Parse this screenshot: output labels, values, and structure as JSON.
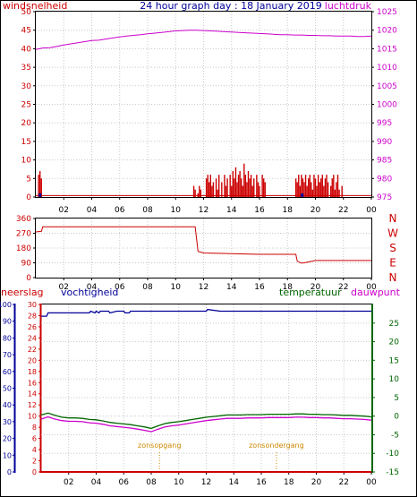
{
  "header": {
    "title": "24 hour graph day : 18 January 2019",
    "left_label": "windsnelheid",
    "right_label": "luchtdruk"
  },
  "colors": {
    "wind": "#cc0000",
    "pressure": "#cc00cc",
    "direction": "#cc0000",
    "rain": "#cc0000",
    "humidity": "#000099",
    "temperature": "#006600",
    "dewpoint": "#cc00cc",
    "sun": "#cc8800",
    "grid": "#c8c8c8",
    "axis": "#000000",
    "title": "#000099"
  },
  "chart_data": [
    {
      "type": "bar+line",
      "title": "24 hour graph day : 18 January 2019",
      "ylabel": "windsnelheid",
      "y2label": "luchtdruk",
      "x_ticks": [
        "02",
        "04",
        "06",
        "08",
        "10",
        "12",
        "14",
        "16",
        "18",
        "20",
        "22",
        "00"
      ],
      "xlim": [
        0,
        24
      ],
      "ylim": [
        0,
        50
      ],
      "y_ticks": [
        "0",
        "5",
        "10",
        "15",
        "20",
        "25",
        "30",
        "35",
        "40",
        "45",
        "50"
      ],
      "y2lim": [
        975,
        1025
      ],
      "y2_ticks": [
        "975",
        "980",
        "985",
        "990",
        "995",
        "1000",
        "1005",
        "1010",
        "1015",
        "1020",
        "1025"
      ],
      "wind_gust": {
        "x": [
          0.2,
          0.3,
          0.4,
          11.3,
          11.4,
          11.6,
          11.7,
          11.8,
          12.2,
          12.3,
          12.4,
          12.5,
          12.6,
          12.7,
          12.9,
          13.0,
          13.1,
          13.3,
          13.5,
          13.6,
          13.7,
          13.9,
          14.0,
          14.1,
          14.2,
          14.3,
          14.4,
          14.5,
          14.6,
          14.7,
          14.8,
          14.9,
          15.0,
          15.1,
          15.2,
          15.3,
          15.4,
          15.5,
          15.6,
          15.8,
          15.9,
          16.0,
          16.2,
          16.3,
          16.4,
          18.6,
          18.7,
          18.8,
          18.9,
          19.0,
          19.1,
          19.2,
          19.3,
          19.4,
          19.5,
          19.6,
          19.7,
          19.8,
          19.9,
          20.0,
          20.1,
          20.2,
          20.3,
          20.4,
          20.5,
          20.6,
          20.7,
          20.8,
          20.9,
          21.1,
          21.2,
          21.3,
          21.4,
          21.5,
          21.6,
          21.7,
          21.9
        ],
        "values": [
          6,
          7,
          5,
          3,
          2,
          1,
          3,
          2,
          5,
          6,
          4,
          6,
          3,
          4,
          5,
          2,
          6,
          4,
          6,
          3,
          5,
          6,
          3,
          7,
          5,
          8,
          4,
          6,
          7,
          5,
          3,
          9,
          6,
          4,
          7,
          5,
          6,
          3,
          5,
          6,
          4,
          3,
          6,
          5,
          4,
          5,
          4,
          6,
          3,
          6,
          5,
          4,
          6,
          3,
          5,
          6,
          4,
          2,
          6,
          5,
          3,
          6,
          4,
          5,
          6,
          3,
          5,
          6,
          4,
          3,
          5,
          6,
          2,
          4,
          6,
          2,
          3
        ],
        "flat_value": 0.4
      },
      "wind_avg": {
        "x": [
          0.25,
          0.35,
          19.0,
          19.1
        ],
        "values": [
          1,
          1,
          1,
          1
        ]
      },
      "pressure": {
        "x": [
          0,
          0.5,
          1,
          1.5,
          2,
          2.5,
          3,
          3.5,
          4,
          4.5,
          5,
          5.5,
          6,
          6.5,
          7,
          7.5,
          8,
          8.5,
          9,
          9.5,
          10,
          10.5,
          11,
          11.5,
          12,
          12.5,
          13,
          13.5,
          14,
          14.5,
          15,
          15.5,
          16,
          16.5,
          17,
          17.5,
          18,
          18.5,
          19,
          19.5,
          20,
          20.5,
          21,
          21.5,
          22,
          22.5,
          23,
          23.5,
          24
        ],
        "values": [
          1014.8,
          1015.2,
          1015.3,
          1015.6,
          1016.0,
          1016.3,
          1016.6,
          1016.9,
          1017.2,
          1017.3,
          1017.6,
          1017.9,
          1018.2,
          1018.4,
          1018.6,
          1018.8,
          1019.0,
          1019.2,
          1019.4,
          1019.6,
          1019.8,
          1019.9,
          1020.0,
          1020.0,
          1019.9,
          1019.8,
          1019.7,
          1019.6,
          1019.5,
          1019.4,
          1019.3,
          1019.2,
          1019.1,
          1019.0,
          1018.9,
          1018.8,
          1018.8,
          1018.7,
          1018.7,
          1018.6,
          1018.6,
          1018.5,
          1018.5,
          1018.4,
          1018.4,
          1018.4,
          1018.3,
          1018.3,
          1018.4
        ]
      }
    },
    {
      "type": "line",
      "ylabel": "wind direction",
      "direction_labels": [
        "N",
        "W",
        "S",
        "E",
        "N"
      ],
      "ylim": [
        0,
        360
      ],
      "y_ticks": [
        "0",
        "90",
        "180",
        "270",
        "360"
      ],
      "x_ticks": [
        "02",
        "04",
        "06",
        "08",
        "10",
        "12",
        "14",
        "16",
        "18",
        "20",
        "22",
        "00"
      ],
      "xlim": [
        0,
        24
      ],
      "direction": {
        "x": [
          0,
          0.4,
          0.5,
          11.4,
          11.6,
          12.0,
          13.0,
          14.0,
          15.0,
          16.0,
          17.0,
          18.0,
          18.6,
          18.7,
          19.0,
          19.3,
          20.0,
          21.0,
          24.0
        ],
        "values": [
          278,
          282,
          310,
          310,
          160,
          150,
          148,
          146,
          144,
          142,
          142,
          142,
          142,
          100,
          88,
          92,
          104,
          104,
          104
        ]
      }
    },
    {
      "type": "line",
      "left_label": "neerslag",
      "humidity_label": "vochtigheid",
      "temperature_label": "temperatuur",
      "dewpoint_label": "dauwpunt",
      "x_ticks": [
        "02",
        "04",
        "06",
        "08",
        "10",
        "12",
        "14",
        "16",
        "18",
        "20",
        "22",
        "00"
      ],
      "xlim": [
        0,
        24
      ],
      "humidity_axis": {
        "ylim": [
          0,
          100
        ],
        "y_ticks": [
          "0",
          "10",
          "20",
          "30",
          "40",
          "50",
          "60",
          "70",
          "80",
          "90",
          "100"
        ]
      },
      "rain_axis": {
        "ylim": [
          0,
          30
        ],
        "y_ticks": [
          "0",
          "2",
          "4",
          "6",
          "8",
          "10",
          "12",
          "14",
          "16",
          "18",
          "20",
          "22",
          "24",
          "26",
          "28",
          "30"
        ]
      },
      "temperature_axis": {
        "ylim": [
          -15,
          30
        ],
        "y_ticks": [
          "-15",
          "-10",
          "-5",
          "0",
          "5",
          "10",
          "15",
          "20",
          "25"
        ]
      },
      "annotations": [
        {
          "label": "zonsopgang",
          "x": 8.6
        },
        {
          "label": "zonsondergang",
          "x": 17.1
        }
      ],
      "humidity": {
        "x": [
          0,
          0.4,
          0.5,
          3.5,
          3.6,
          3.9,
          4.0,
          4.2,
          4.3,
          4.9,
          5.0,
          5.5,
          6.0,
          6.1,
          6.4,
          6.5,
          7.0,
          8.0,
          9.5,
          10.0,
          11.0,
          12.0,
          12.1,
          13.0,
          14.0,
          16.0,
          18.0,
          20.0,
          22.0,
          24.0
        ],
        "values": [
          93,
          93,
          95,
          95,
          96,
          95,
          96,
          95,
          96,
          96,
          95,
          96,
          96,
          95,
          95,
          96,
          96,
          96,
          96,
          96,
          96,
          96,
          97,
          96,
          96,
          96,
          96,
          96,
          96,
          96
        ]
      },
      "temperature": {
        "x": [
          0,
          0.5,
          1,
          1.5,
          2,
          2.5,
          3,
          3.5,
          4,
          4.5,
          5,
          5.5,
          6,
          6.5,
          7,
          7.5,
          8,
          8.5,
          9,
          9.5,
          10,
          10.5,
          11,
          11.5,
          12,
          12.5,
          13,
          13.5,
          14,
          14.5,
          15,
          15.5,
          16,
          16.5,
          17,
          17.5,
          18,
          18.5,
          19,
          19.5,
          20,
          20.5,
          21,
          21.5,
          22,
          22.5,
          23,
          23.5,
          24
        ],
        "values": [
          0.3,
          0.8,
          0.2,
          -0.3,
          -0.5,
          -0.5,
          -0.6,
          -0.9,
          -1.0,
          -1.3,
          -1.7,
          -1.9,
          -2.1,
          -2.3,
          -2.6,
          -2.9,
          -3.3,
          -2.6,
          -2.0,
          -1.7,
          -1.5,
          -1.2,
          -0.9,
          -0.6,
          -0.3,
          -0.1,
          0.1,
          0.3,
          0.3,
          0.3,
          0.4,
          0.4,
          0.4,
          0.5,
          0.5,
          0.5,
          0.5,
          0.6,
          0.6,
          0.5,
          0.5,
          0.4,
          0.4,
          0.3,
          0.2,
          0.2,
          0.1,
          0.0,
          -0.2
        ]
      },
      "dewpoint": {
        "x": [
          0,
          0.5,
          1,
          1.5,
          2,
          2.5,
          3,
          3.5,
          4,
          4.5,
          5,
          5.5,
          6,
          6.5,
          7,
          7.5,
          8,
          8.5,
          9,
          9.5,
          10,
          10.5,
          11,
          11.5,
          12,
          12.5,
          13,
          13.5,
          14,
          14.5,
          15,
          15.5,
          16,
          16.5,
          17,
          17.5,
          18,
          18.5,
          19,
          19.5,
          20,
          20.5,
          21,
          21.5,
          22,
          22.5,
          23,
          23.5,
          24
        ],
        "values": [
          -0.8,
          -0.2,
          -0.8,
          -1.2,
          -1.4,
          -1.4,
          -1.5,
          -1.8,
          -1.9,
          -2.2,
          -2.6,
          -2.8,
          -3.0,
          -3.2,
          -3.5,
          -3.8,
          -4.2,
          -3.5,
          -2.9,
          -2.6,
          -2.4,
          -2.1,
          -1.8,
          -1.5,
          -1.2,
          -1.0,
          -0.8,
          -0.6,
          -0.6,
          -0.6,
          -0.5,
          -0.5,
          -0.5,
          -0.4,
          -0.4,
          -0.4,
          -0.4,
          -0.3,
          -0.3,
          -0.4,
          -0.4,
          -0.5,
          -0.5,
          -0.6,
          -0.7,
          -0.7,
          -0.8,
          -0.9,
          -1.1
        ]
      },
      "rain": {
        "x": [
          0,
          24
        ],
        "values": [
          0,
          0
        ]
      }
    }
  ]
}
